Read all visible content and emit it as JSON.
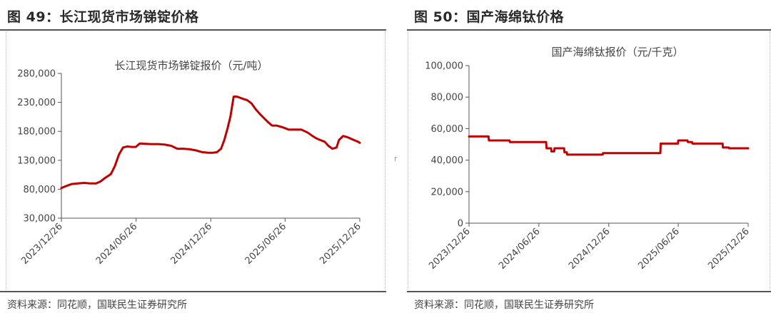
{
  "figures": [
    {
      "fig_title": "图 49：长江现货市场锑锭价格",
      "source": "资料来源：同花顺，国联民生证券研究所"
    },
    {
      "fig_title": "图 50：国产海绵钛价格",
      "source": "资料来源：同花顺，国联民生证券研究所"
    }
  ],
  "mark": "r",
  "chart_data": [
    {
      "type": "line",
      "title": "长江现货市场锑锭报价（元/吨）",
      "ylim": [
        30000,
        280000
      ],
      "yticks": [
        30000,
        80000,
        130000,
        180000,
        230000,
        280000
      ],
      "ytick_labels": [
        "30,000",
        "80,000",
        "130,000",
        "180,000",
        "230,000",
        "280,000"
      ],
      "xlim": [
        "2023-12-26",
        "2025-12-26"
      ],
      "xticks": [
        "2023-12-26",
        "2024-06-26",
        "2024-12-26",
        "2025-06-26",
        "2025-12-26"
      ],
      "xtick_labels": [
        "2023/12/26",
        "2024/06/26",
        "2024/12/26",
        "2025/06/26",
        "2025/12/26"
      ],
      "color": "#c00000",
      "grid": false,
      "series": [
        {
          "x": [
            "2023-12-26",
            "2024-01-05",
            "2024-01-20",
            "2024-02-05",
            "2024-02-20",
            "2024-03-05",
            "2024-03-20",
            "2024-03-30",
            "2024-04-10",
            "2024-04-25",
            "2024-05-05",
            "2024-05-15",
            "2024-05-25",
            "2024-06-05",
            "2024-06-15",
            "2024-06-25",
            "2024-07-05",
            "2024-08-01",
            "2024-08-20",
            "2024-09-05",
            "2024-09-20",
            "2024-10-05",
            "2024-10-20",
            "2024-11-05",
            "2024-11-20",
            "2024-12-05",
            "2024-12-20",
            "2025-01-01",
            "2025-01-10",
            "2025-01-20",
            "2025-01-28",
            "2025-02-05",
            "2025-02-12",
            "2025-02-20",
            "2025-02-28",
            "2025-03-15",
            "2025-03-25",
            "2025-04-05",
            "2025-04-15",
            "2025-04-25",
            "2025-05-05",
            "2025-05-15",
            "2025-05-25",
            "2025-06-05",
            "2025-06-20",
            "2025-07-05",
            "2025-07-20",
            "2025-08-05",
            "2025-08-20",
            "2025-09-01",
            "2025-09-10",
            "2025-09-20",
            "2025-10-01",
            "2025-10-10",
            "2025-10-20",
            "2025-10-30",
            "2025-11-05",
            "2025-11-15",
            "2025-11-25",
            "2025-12-05",
            "2025-12-15",
            "2025-12-22",
            "2025-12-26"
          ],
          "y": [
            82000,
            85000,
            89000,
            90000,
            91000,
            90000,
            90000,
            93000,
            99000,
            106000,
            120000,
            140000,
            152000,
            154000,
            153000,
            153000,
            159000,
            158000,
            158000,
            157000,
            155000,
            150000,
            150000,
            149000,
            147000,
            144000,
            143000,
            143000,
            144000,
            150000,
            165000,
            185000,
            205000,
            240000,
            240000,
            236000,
            234000,
            228000,
            218000,
            210000,
            203000,
            196000,
            190000,
            190000,
            187000,
            183000,
            183000,
            183000,
            178000,
            172000,
            168000,
            165000,
            162000,
            155000,
            150000,
            152000,
            165000,
            172000,
            170000,
            167000,
            164000,
            162000,
            160000
          ]
        }
      ]
    },
    {
      "type": "line",
      "title": "国产海绵钛报价（元/千克）",
      "ylim": [
        0,
        100000
      ],
      "yticks": [
        0,
        20000,
        40000,
        60000,
        80000,
        100000
      ],
      "ytick_labels": [
        "0",
        "20,000",
        "40,000",
        "60,000",
        "80,000",
        "100,000"
      ],
      "xlim": [
        "2023-12-26",
        "2025-12-26"
      ],
      "xticks": [
        "2023-12-26",
        "2024-06-26",
        "2024-12-26",
        "2025-06-26",
        "2025-12-26"
      ],
      "xtick_labels": [
        "2023/12/26",
        "2024/06/26",
        "2024/12/26",
        "2025/06/26",
        "2025/12/26"
      ],
      "color": "#c00000",
      "grid": false,
      "series": [
        {
          "x": [
            "2023-12-26",
            "2024-02-15",
            "2024-02-16",
            "2024-04-10",
            "2024-04-11",
            "2024-07-15",
            "2024-07-16",
            "2024-07-28",
            "2024-07-29",
            "2024-08-05",
            "2024-08-06",
            "2024-08-31",
            "2024-09-01",
            "2024-09-07",
            "2024-09-08",
            "2024-12-10",
            "2024-12-11",
            "2025-05-10",
            "2025-05-11",
            "2025-06-25",
            "2025-06-26",
            "2025-07-20",
            "2025-07-21",
            "2025-08-01",
            "2025-08-02",
            "2025-10-20",
            "2025-10-21",
            "2025-11-05",
            "2025-11-06",
            "2025-12-26"
          ],
          "y": [
            55000,
            55000,
            52500,
            52500,
            51500,
            51500,
            47500,
            47500,
            45500,
            45500,
            47500,
            47500,
            45000,
            45000,
            43500,
            43500,
            44500,
            44500,
            50500,
            50500,
            52500,
            52500,
            51500,
            51500,
            50500,
            50500,
            48000,
            48000,
            47500,
            47500
          ]
        }
      ]
    }
  ]
}
